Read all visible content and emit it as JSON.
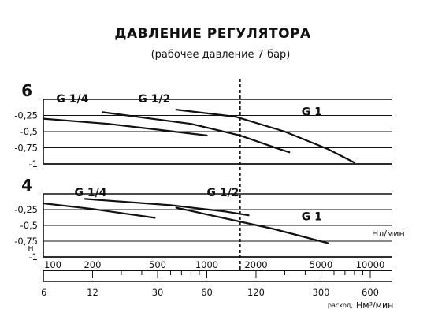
{
  "chart_data": {
    "type": "line",
    "title": "ДАВЛЕНИЕ РЕГУЛЯТОРА",
    "subtitle": "(рабочее давление 7 бар)",
    "ylabel": "н",
    "top_pressure_label": "6",
    "bottom_pressure_label": "4",
    "x_unit_label": "Нл/мин",
    "x2_caption": "расход",
    "x2_unit": "Нм³/мин",
    "x_scale": "log",
    "xlim": [
      100,
      10000
    ],
    "y_ticks": [
      "-0,25",
      "-0,5",
      "-0,75",
      "-1"
    ],
    "x_ticks_top": [
      "100",
      "200",
      "500",
      "1000",
      "2000",
      "5000",
      "10000"
    ],
    "x_ticks_bottom": [
      "6",
      "12",
      "30",
      "60",
      "120",
      "300",
      "600"
    ],
    "reference_line_x": 1600,
    "panels": [
      {
        "pressure": 6,
        "ylim": [
          -1,
          0
        ],
        "series": [
          {
            "name": "G 1/4",
            "x": [
              100,
              250,
              500,
              1000
            ],
            "y": [
              -0.3,
              -0.38,
              -0.47,
              -0.56
            ]
          },
          {
            "name": "G 1/2",
            "x": [
              230,
              800,
              1600,
              2700,
              3200
            ],
            "y": [
              -0.2,
              -0.38,
              -0.56,
              -0.76,
              -0.82
            ]
          },
          {
            "name": "G 1",
            "x": [
              650,
              1500,
              3000,
              5500,
              8000
            ],
            "y": [
              -0.16,
              -0.27,
              -0.5,
              -0.77,
              -0.98
            ]
          }
        ]
      },
      {
        "pressure": 4,
        "ylim": [
          -1,
          0
        ],
        "series": [
          {
            "name": "G 1/4",
            "x": [
              100,
              200,
              480
            ],
            "y": [
              -0.15,
              -0.24,
              -0.38
            ]
          },
          {
            "name": "G 1/2",
            "x": [
              180,
              600,
              1300,
              1800
            ],
            "y": [
              -0.08,
              -0.18,
              -0.28,
              -0.34
            ]
          },
          {
            "name": "G 1",
            "x": [
              650,
              2500,
              5500
            ],
            "y": [
              -0.22,
              -0.55,
              -0.78
            ]
          }
        ]
      }
    ]
  }
}
